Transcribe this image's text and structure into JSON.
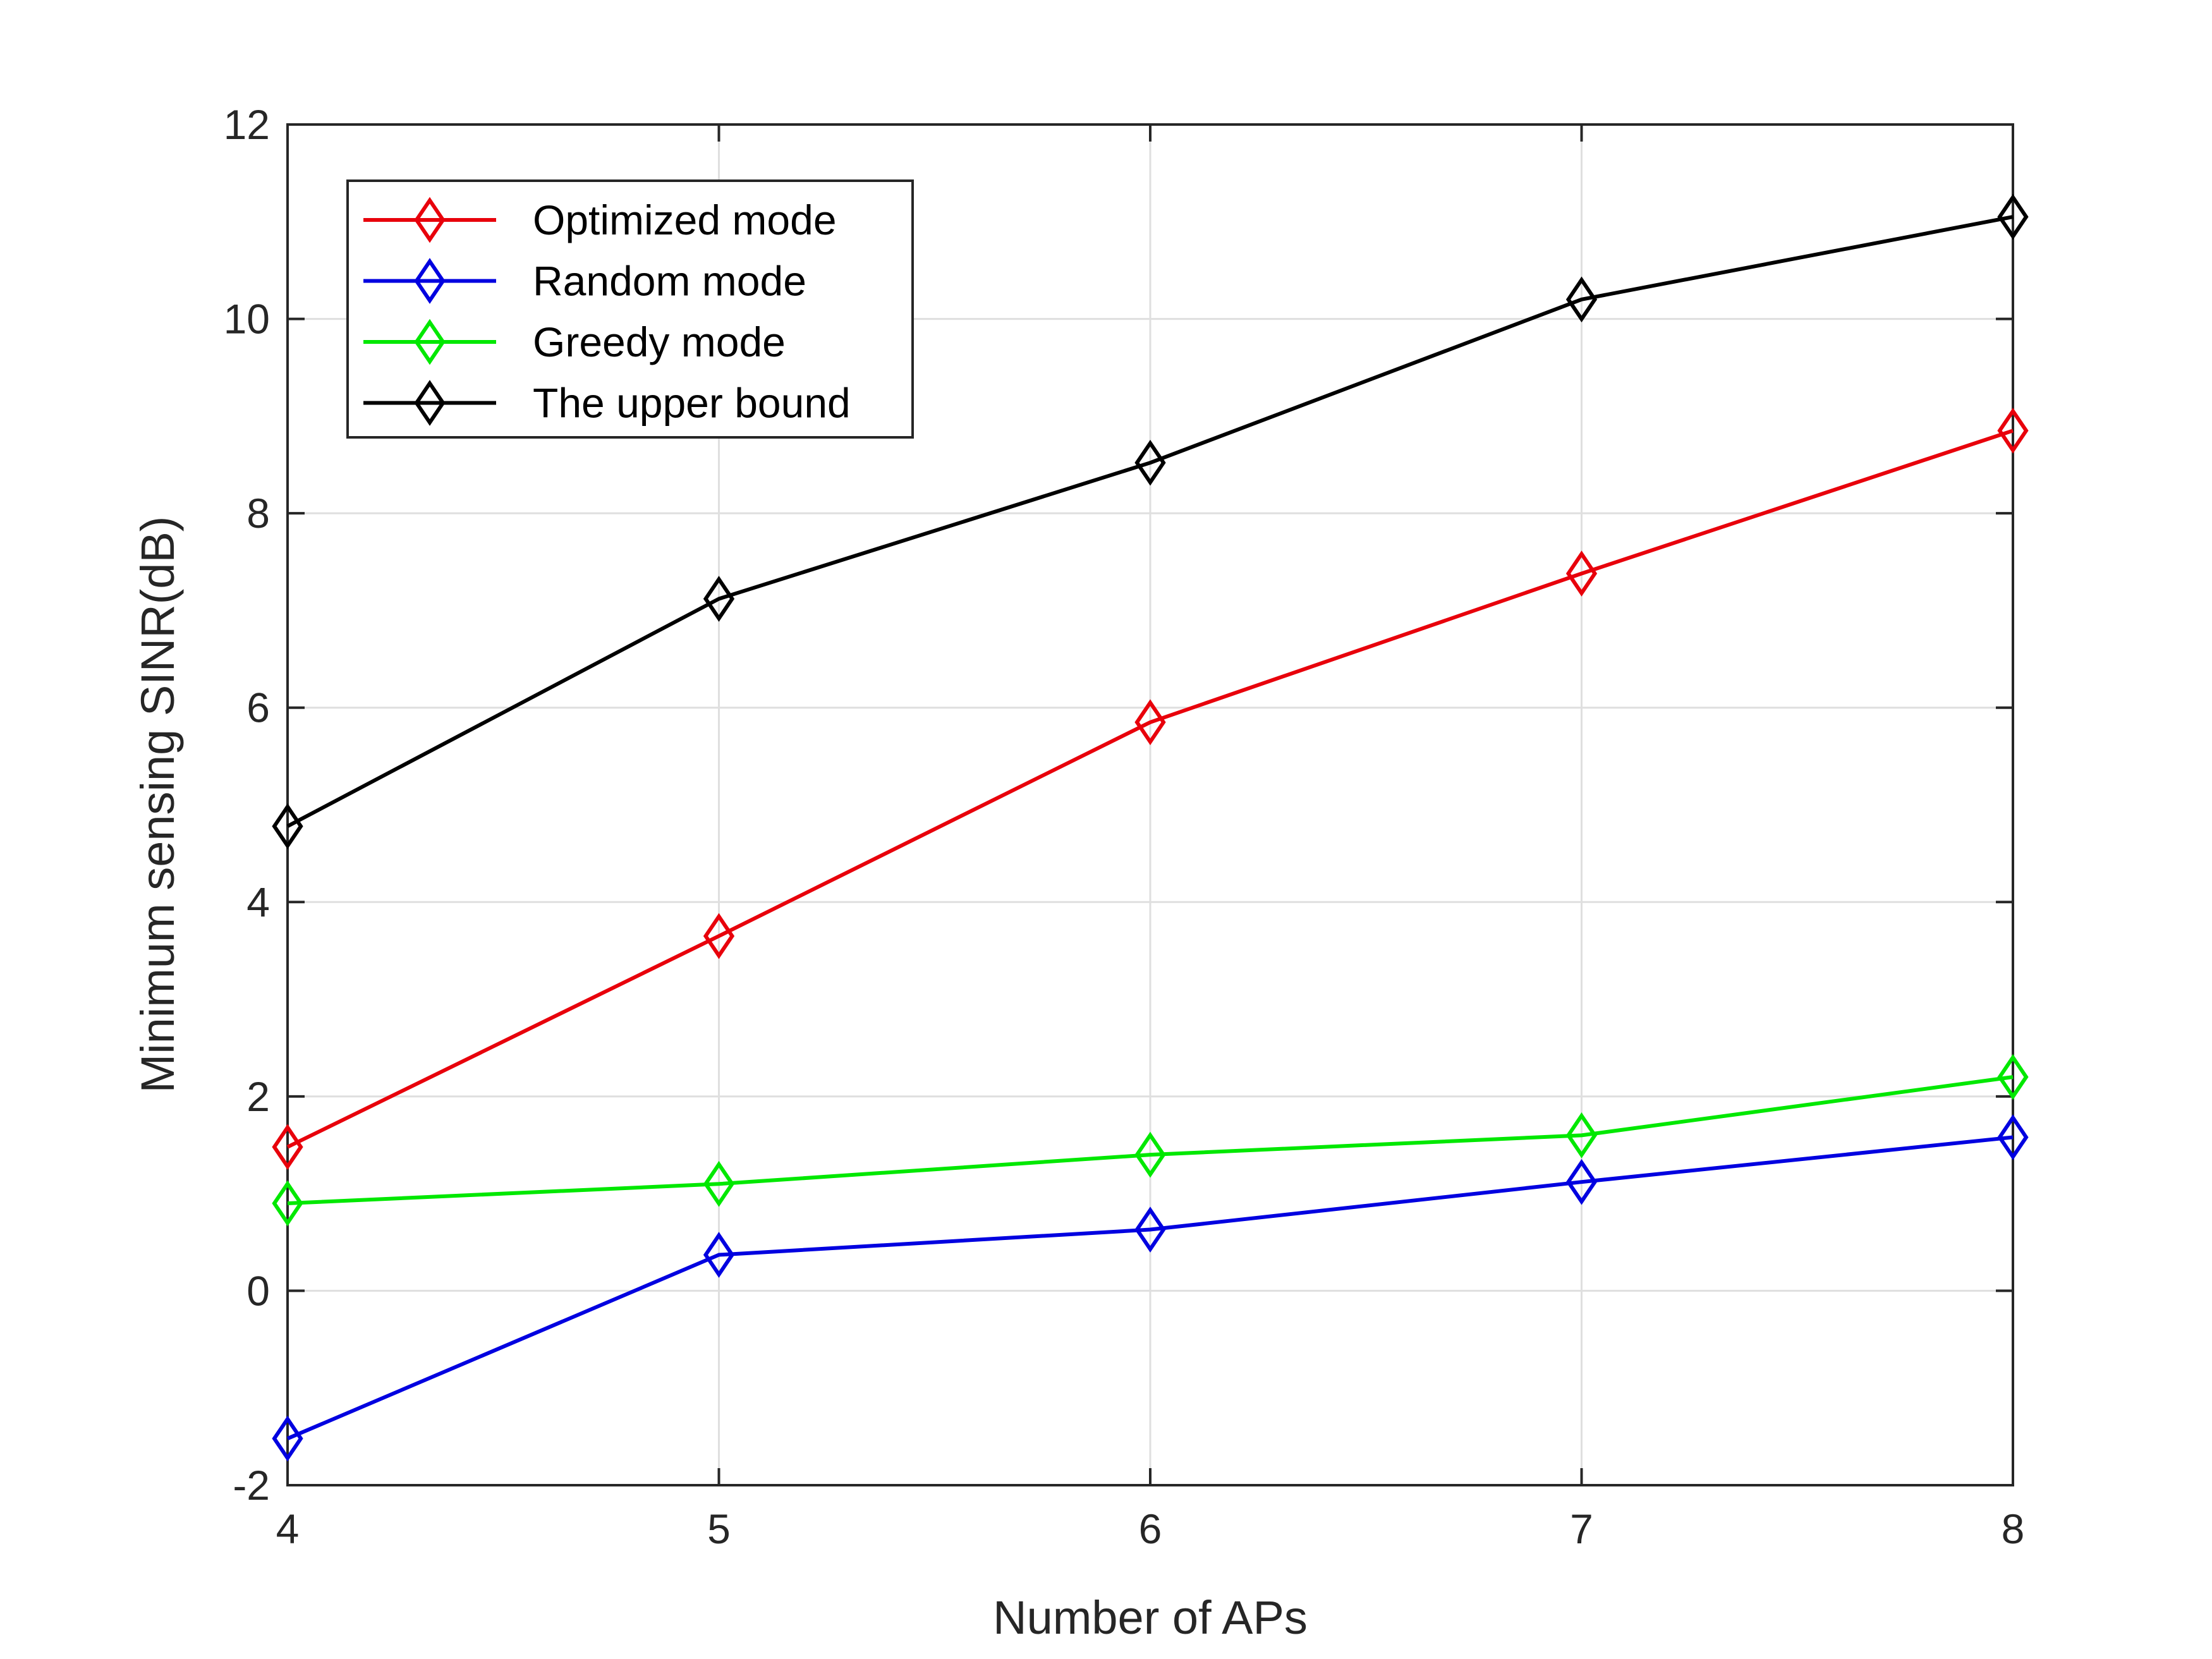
{
  "chart_data": {
    "type": "line",
    "title": "",
    "xlabel": "Number of APs",
    "ylabel": "Minimum sensing SINR(dB)",
    "xlim": [
      4,
      8
    ],
    "ylim": [
      -2,
      12
    ],
    "x": [
      4,
      5,
      6,
      7,
      8
    ],
    "xticks": [
      "4",
      "5",
      "6",
      "7",
      "8"
    ],
    "yticks": [
      "-2",
      "0",
      "2",
      "4",
      "6",
      "8",
      "10",
      "12"
    ],
    "grid": true,
    "marker": "diamond",
    "legend_position": "top-left",
    "series": [
      {
        "name": "Optimized mode",
        "color": "#e8000b",
        "values": [
          1.48,
          3.65,
          5.85,
          7.38,
          8.85
        ]
      },
      {
        "name": "Random mode",
        "color": "#0000e0",
        "values": [
          -1.52,
          0.37,
          0.63,
          1.12,
          1.58
        ]
      },
      {
        "name": "Greedy mode",
        "color": "#00e800",
        "values": [
          0.9,
          1.1,
          1.4,
          1.6,
          2.2
        ]
      },
      {
        "name": "The upper bound",
        "color": "#000000",
        "values": [
          4.78,
          7.12,
          8.52,
          10.2,
          11.05
        ]
      }
    ]
  }
}
